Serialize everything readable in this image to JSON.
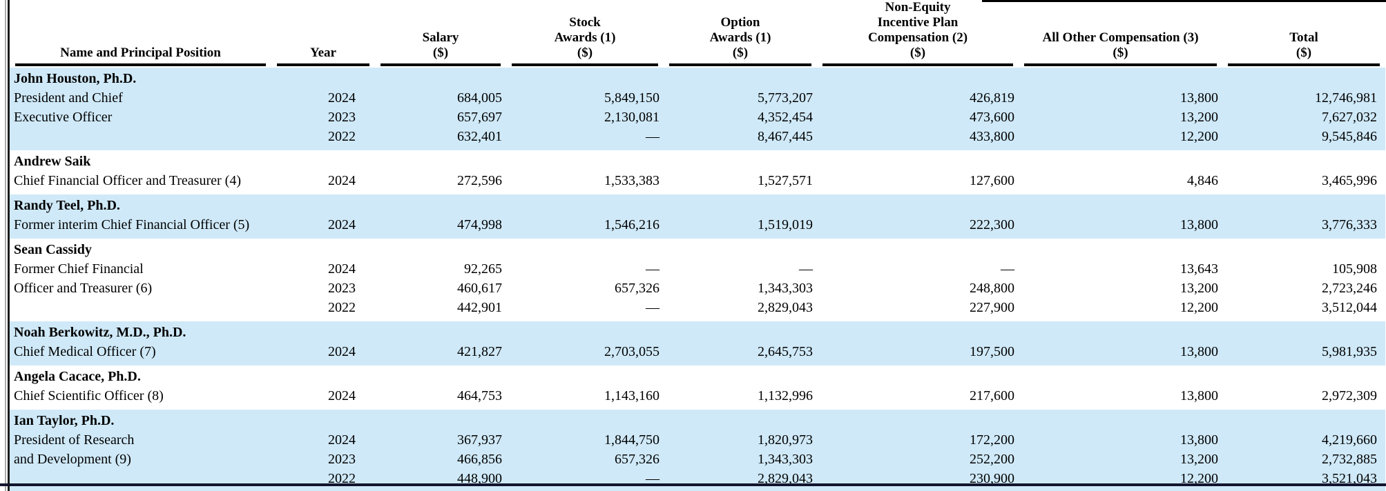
{
  "colors": {
    "row_highlight": "#cfe9f8"
  },
  "table": {
    "columns": [
      {
        "id": "name",
        "lines": [
          "Name and Principal Position"
        ]
      },
      {
        "id": "year",
        "lines": [
          "Year"
        ]
      },
      {
        "id": "salary",
        "lines": [
          "Salary",
          "($)"
        ]
      },
      {
        "id": "stock",
        "lines": [
          "Stock",
          "Awards (1)",
          "($)"
        ]
      },
      {
        "id": "option",
        "lines": [
          "Option",
          "Awards (1)",
          "($)"
        ]
      },
      {
        "id": "noneq",
        "lines": [
          "Non-Equity",
          "Incentive Plan",
          "Compensation (2)",
          "($)"
        ]
      },
      {
        "id": "other",
        "lines": [
          "All Other Compensation (3)",
          "($)"
        ]
      },
      {
        "id": "total",
        "lines": [
          "Total",
          "($)"
        ]
      }
    ],
    "groups": [
      {
        "name": "John Houston, Ph.D.",
        "shaded": true,
        "rows": [
          {
            "position": "President and Chief",
            "year": "2024",
            "salary": "684,005",
            "stock": "5,849,150",
            "option": "5,773,207",
            "noneq": "426,819",
            "other": "13,800",
            "total": "12,746,981"
          },
          {
            "position": "Executive Officer",
            "year": "2023",
            "salary": "657,697",
            "stock": "2,130,081",
            "option": "4,352,454",
            "noneq": "473,600",
            "other": "13,200",
            "total": "7,627,032"
          },
          {
            "position": "",
            "year": "2022",
            "salary": "632,401",
            "stock": "—",
            "option": "8,467,445",
            "noneq": "433,800",
            "other": "12,200",
            "total": "9,545,846"
          }
        ]
      },
      {
        "name": "Andrew Saik",
        "shaded": false,
        "rows": [
          {
            "position": "Chief Financial Officer and Treasurer (4)",
            "year": "2024",
            "salary": "272,596",
            "stock": "1,533,383",
            "option": "1,527,571",
            "noneq": "127,600",
            "other": "4,846",
            "total": "3,465,996"
          }
        ]
      },
      {
        "name": "Randy Teel, Ph.D.",
        "shaded": true,
        "rows": [
          {
            "position": "Former interim Chief Financial Officer (5)",
            "year": "2024",
            "salary": "474,998",
            "stock": "1,546,216",
            "option": "1,519,019",
            "noneq": "222,300",
            "other": "13,800",
            "total": "3,776,333"
          }
        ]
      },
      {
        "name": "Sean Cassidy",
        "shaded": false,
        "rows": [
          {
            "position": "Former Chief Financial",
            "year": "2024",
            "salary": "92,265",
            "stock": "—",
            "option": "—",
            "noneq": "—",
            "other": "13,643",
            "total": "105,908"
          },
          {
            "position": "Officer and Treasurer (6)",
            "year": "2023",
            "salary": "460,617",
            "stock": "657,326",
            "option": "1,343,303",
            "noneq": "248,800",
            "other": "13,200",
            "total": "2,723,246"
          },
          {
            "position": "",
            "year": "2022",
            "salary": "442,901",
            "stock": "—",
            "option": "2,829,043",
            "noneq": "227,900",
            "other": "12,200",
            "total": "3,512,044"
          }
        ]
      },
      {
        "name": "Noah Berkowitz, M.D., Ph.D.",
        "shaded": true,
        "rows": [
          {
            "position": "Chief Medical Officer (7)",
            "year": "2024",
            "salary": "421,827",
            "stock": "2,703,055",
            "option": "2,645,753",
            "noneq": "197,500",
            "other": "13,800",
            "total": "5,981,935"
          }
        ]
      },
      {
        "name": "Angela Cacace, Ph.D.",
        "shaded": false,
        "rows": [
          {
            "position": "Chief Scientific Officer (8)",
            "year": "2024",
            "salary": "464,753",
            "stock": "1,143,160",
            "option": "1,132,996",
            "noneq": "217,600",
            "other": "13,800",
            "total": "2,972,309"
          }
        ]
      },
      {
        "name": "Ian Taylor, Ph.D.",
        "shaded": true,
        "rows": [
          {
            "position": "President of Research",
            "year": "2024",
            "salary": "367,937",
            "stock": "1,844,750",
            "option": "1,820,973",
            "noneq": "172,200",
            "other": "13,800",
            "total": "4,219,660"
          },
          {
            "position": "and Development (9)",
            "year": "2023",
            "salary": "466,856",
            "stock": "657,326",
            "option": "1,343,303",
            "noneq": "252,200",
            "other": "13,200",
            "total": "2,732,885"
          },
          {
            "position": "",
            "year": "2022",
            "salary": "448,900",
            "stock": "—",
            "option": "2,829,043",
            "noneq": "230,900",
            "other": "12,200",
            "total": "3,521,043"
          }
        ]
      }
    ]
  }
}
